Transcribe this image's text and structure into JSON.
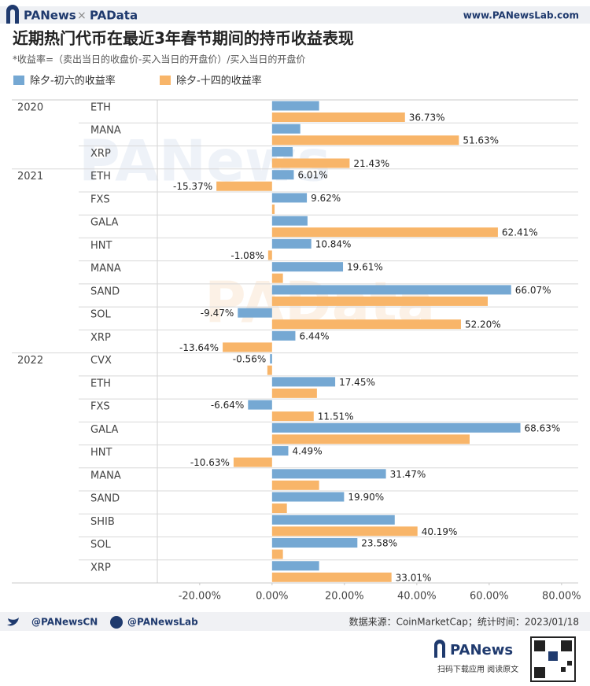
{
  "header": {
    "brand_left": "PANews",
    "cross": "×",
    "brand_right": "PAData",
    "site": "www.PANewsLab.com"
  },
  "watermarks": [
    "PANews",
    "PAData"
  ],
  "chart_data": {
    "type": "hbar",
    "title": "近期热门代币在最近3年春节期间的持币收益表现",
    "subtitle": "*收益率=（卖出当日的收盘价-买入当日的开盘价）/买入当日的开盘价",
    "groups": [
      "2020",
      null,
      null,
      "2021",
      null,
      null,
      null,
      null,
      null,
      null,
      null,
      "2022",
      null,
      null,
      null,
      null,
      null,
      null,
      null,
      null,
      null
    ],
    "categories": [
      "ETH",
      "MANA",
      "XRP",
      "ETH",
      "FXS",
      "GALA",
      "HNT",
      "MANA",
      "SAND",
      "SOL",
      "XRP",
      "CVX",
      "ETH",
      "FXS",
      "GALA",
      "HNT",
      "MANA",
      "SAND",
      "SHIB",
      "SOL",
      "XRP"
    ],
    "series": [
      {
        "name": "除夕-初六的收益率",
        "color": "#75a8d3",
        "values": [
          13.0,
          7.8,
          5.7,
          6.01,
          9.62,
          9.8,
          10.84,
          19.61,
          66.07,
          -9.47,
          6.44,
          -0.56,
          17.45,
          -6.64,
          68.63,
          4.49,
          31.47,
          19.9,
          33.9,
          23.58,
          13.0
        ],
        "value_labels": [
          null,
          null,
          null,
          "6.01%",
          "9.62%",
          null,
          "10.84%",
          "19.61%",
          "66.07%",
          "-9.47%",
          "6.44%",
          "-0.56%",
          "17.45%",
          "-6.64%",
          "68.63%",
          "4.49%",
          "31.47%",
          "19.90%",
          null,
          "23.58%",
          null
        ]
      },
      {
        "name": "除夕-十四的收益率",
        "color": "#f8b569",
        "values": [
          36.73,
          51.63,
          21.43,
          -15.37,
          0.7,
          62.41,
          -1.08,
          3.0,
          59.6,
          52.2,
          -13.64,
          -1.3,
          12.4,
          11.51,
          54.6,
          -10.63,
          13.0,
          4.1,
          40.19,
          3.0,
          33.01
        ],
        "value_labels": [
          "36.73%",
          "51.63%",
          "21.43%",
          "-15.37%",
          null,
          "62.41%",
          "-1.08%",
          null,
          null,
          "52.20%",
          "-13.64%",
          null,
          null,
          "11.51%",
          null,
          "-10.63%",
          null,
          null,
          "40.19%",
          null,
          "33.01%"
        ]
      }
    ],
    "xlim": [
      -31.7,
      84.6
    ],
    "xticks": [
      {
        "value": -20,
        "label": "-20.00%"
      },
      {
        "value": 0,
        "label": "0.00%"
      },
      {
        "value": 20,
        "label": "20.00%"
      },
      {
        "value": 40,
        "label": "40.00%"
      },
      {
        "value": 60,
        "label": "60.00%"
      },
      {
        "value": 80,
        "label": "80.00%"
      }
    ],
    "grid": false
  },
  "footer": {
    "twitter": "@PANewsCN",
    "facebook": "@PANewsLab",
    "source": "数据来源：CoinMarketCap；统计时间：2023/01/18",
    "brand": "PANews",
    "qr_caption": "扫码下载应用  阅读原文"
  }
}
